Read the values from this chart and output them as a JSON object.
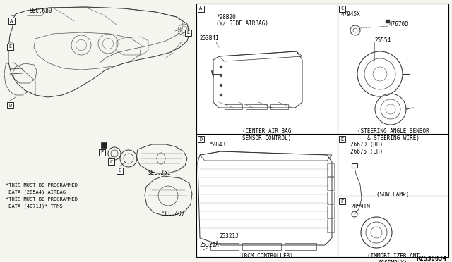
{
  "bg_color": "#f5f5f0",
  "border_color": "#000000",
  "line_color": "#000000",
  "text_color": "#000000",
  "fig_width": 6.4,
  "fig_height": 3.72,
  "diagram_number": "R25300J4",
  "notes": [
    "*THIS MUST BE PROGRAMMED",
    " DATA (285A4) AIRBAG",
    "*THIS MUST BE PROGRAMMED",
    " DATA (4071J)* TPMS"
  ],
  "panel_A_parts": [
    "*98B20",
    "(W/ SIDE AIRBAG)",
    "253B4I"
  ],
  "panel_A_caption": "(CENTER AIR BAG\nSENSOR CONTROL)",
  "panel_C_parts": [
    "47945X",
    "47670D",
    "25554"
  ],
  "panel_C_caption": "(STEERING ANGLE SENSOR\n& STEERING WIRE)",
  "panel_D_parts": [
    "*28431",
    "25321J",
    "25321A"
  ],
  "panel_D_caption": "(BCM CONTROLLER)",
  "panel_E_parts": [
    "26670 (RH)",
    "26675 (LH)"
  ],
  "panel_E_caption": "(SDW LAMP)",
  "panel_F_parts": [
    "28591M"
  ],
  "panel_F_caption": "(IMMOBILIZER ANT\nASSEMBLY)",
  "sec680": "SEC.680",
  "sec251": "SEC.251",
  "sec407": "SEC.407"
}
